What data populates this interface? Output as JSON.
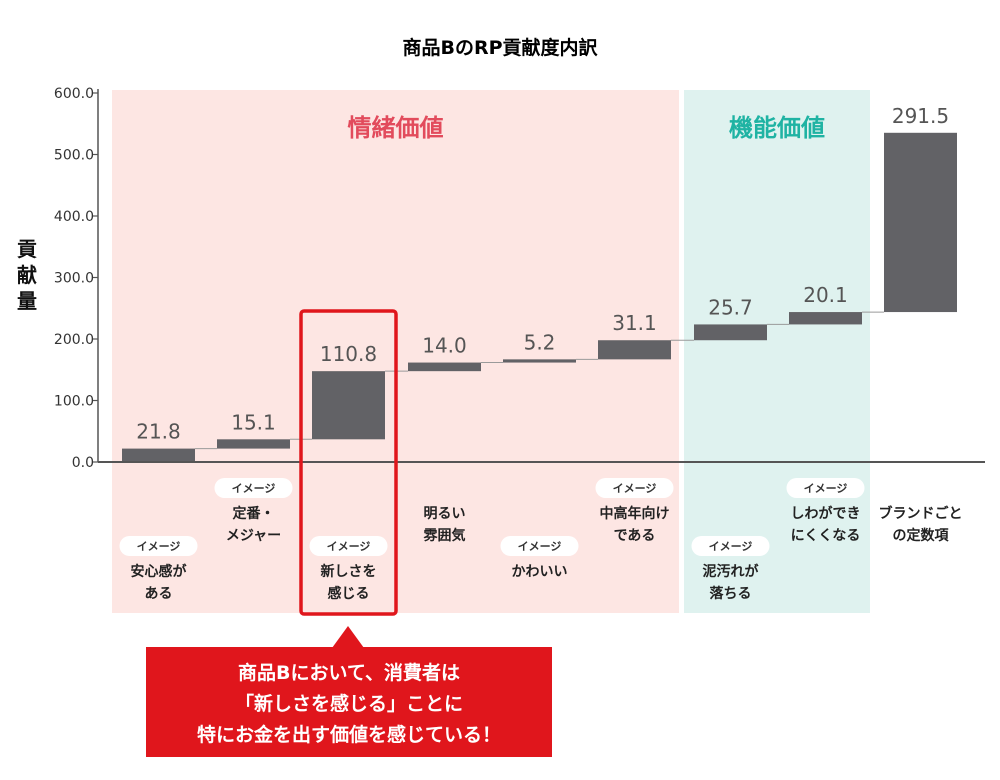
{
  "chart_data": {
    "type": "bar",
    "title": "商品BのRP貢献度内訳",
    "ylabel": "貢献量",
    "ylim": [
      0,
      600
    ],
    "yticks": [
      "0.0",
      "100.0",
      "200.0",
      "300.0",
      "400.0",
      "500.0",
      "600.0"
    ],
    "regions": [
      {
        "label": "情緒価値",
        "color": "#fde6e3",
        "text_color": "#e24b5c",
        "categories": [
          0,
          5
        ]
      },
      {
        "label": "機能価値",
        "color": "#dff2ef",
        "text_color": "#1fb3a3",
        "categories": [
          6,
          7
        ]
      }
    ],
    "categories": [
      {
        "tag": "イメージ",
        "lines": [
          "安心感が",
          "ある"
        ],
        "value": 21.8,
        "label": "21.8"
      },
      {
        "tag": "イメージ",
        "lines": [
          "定番・",
          "メジャー"
        ],
        "value": 15.1,
        "label": "15.1"
      },
      {
        "tag": "イメージ",
        "lines": [
          "新しさを",
          "感じる"
        ],
        "value": 110.8,
        "label": "110.8",
        "highlight": true
      },
      {
        "tag": "",
        "lines": [
          "明るい",
          "雰囲気"
        ],
        "value": 14.0,
        "label": "14.0"
      },
      {
        "tag": "イメージ",
        "lines": [
          "かわいい"
        ],
        "value": 5.2,
        "label": "5.2"
      },
      {
        "tag": "イメージ",
        "lines": [
          "中高年向け",
          "である"
        ],
        "value": 31.1,
        "label": "31.1"
      },
      {
        "tag": "イメージ",
        "lines": [
          "泥汚れが",
          "落ちる"
        ],
        "value": 25.7,
        "label": "25.7"
      },
      {
        "tag": "イメージ",
        "lines": [
          "しわができ",
          "にくくなる"
        ],
        "value": 20.1,
        "label": "20.1"
      },
      {
        "tag": "",
        "lines": [
          "ブランドごと",
          "の定数項"
        ],
        "value": 291.5,
        "label": "291.5"
      }
    ],
    "colors": {
      "bar": "#626266",
      "highlight": "#e0161c",
      "tag_bg": "#ffffff"
    }
  },
  "callout": {
    "line1": "商品Bにおいて、消費者は",
    "line2": "「新しさを感じる」ことに",
    "line3": "特にお金を出す価値を感じている！"
  }
}
